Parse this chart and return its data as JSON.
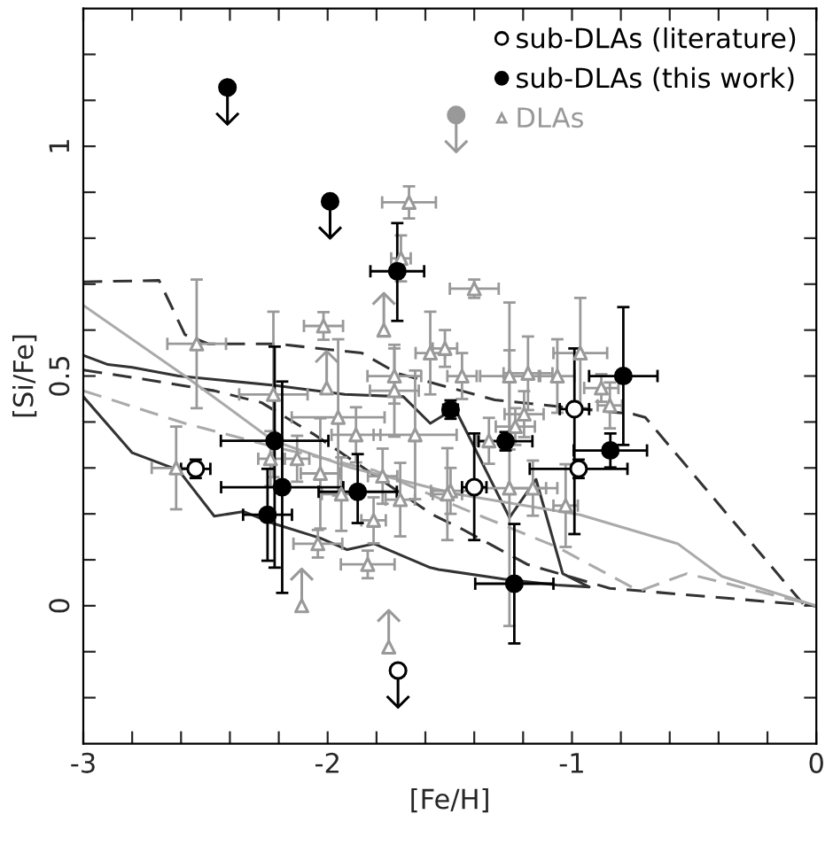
{
  "chart_data": {
    "type": "scatter",
    "xlabel": "[Fe/H]",
    "ylabel": "[Si/Fe]",
    "xlim": [
      -3,
      0
    ],
    "ylim": [
      -0.3,
      1.3
    ],
    "xticks": [
      -3,
      {
        "value": -2.8,
        "label": null
      },
      {
        "value": -2.6,
        "label": null
      },
      {
        "value": -2.4,
        "label": null
      },
      {
        "value": -2.2,
        "label": null
      },
      -2,
      {
        "value": -1.8,
        "label": null
      },
      {
        "value": -1.6,
        "label": null
      },
      {
        "value": -1.4,
        "label": null
      },
      {
        "value": -1.2,
        "label": null
      },
      -1,
      {
        "value": -0.8,
        "label": null
      },
      {
        "value": -0.6,
        "label": null
      },
      {
        "value": -0.4,
        "label": null
      },
      {
        "value": -0.2,
        "label": null
      },
      0
    ],
    "yticks": [
      {
        "value": -0.2,
        "label": null
      },
      {
        "value": -0.1,
        "label": null
      },
      0,
      {
        "value": 0.1,
        "label": null
      },
      {
        "value": 0.2,
        "label": null
      },
      {
        "value": 0.3,
        "label": null
      },
      {
        "value": 0.4,
        "label": null
      },
      0.5,
      {
        "value": 0.6,
        "label": null
      },
      {
        "value": 0.7,
        "label": null
      },
      {
        "value": 0.8,
        "label": null
      },
      {
        "value": 0.9,
        "label": null
      },
      1,
      {
        "value": 1.1,
        "label": null
      },
      {
        "value": 1.2,
        "label": null
      }
    ],
    "grid": false,
    "legend": "top right",
    "series": [
      {
        "type": "line",
        "color": "#333333",
        "line_style": "solid",
        "x": [
          -3.0,
          -2.899,
          -2.8,
          -2.61,
          -2.22,
          -1.93,
          -1.69,
          -1.58,
          -1.5,
          -1.473,
          -1.256,
          -1.147,
          -1.038,
          -0.93
        ],
        "values": [
          0.545,
          0.525,
          0.519,
          0.5,
          0.48,
          0.46,
          0.455,
          0.397,
          0.423,
          0.423,
          0.192,
          0.275,
          0.07,
          0.041
        ]
      },
      {
        "type": "line",
        "color": "#333333",
        "line_style": "solid",
        "x": [
          -3.0,
          -2.8,
          -2.61,
          -2.464,
          -2.343,
          -2.222,
          -2.029,
          -1.92,
          -1.81,
          -1.58,
          -1.546,
          -1.28,
          -1.062,
          -0.93
        ],
        "values": [
          0.455,
          0.333,
          0.295,
          0.195,
          0.205,
          0.179,
          0.147,
          0.122,
          0.135,
          0.083,
          0.079,
          0.058,
          0.045,
          0.041
        ]
      },
      {
        "type": "line",
        "color": "#333333",
        "line_style": "dashed",
        "x": [
          -3.0,
          -2.69,
          -2.584,
          -2.488,
          -2.21,
          -1.86,
          -1.715,
          -1.316,
          -0.75,
          -0.7,
          -0.048,
          0
        ],
        "values": [
          0.705,
          0.708,
          0.59,
          0.57,
          0.57,
          0.55,
          0.506,
          0.448,
          0.417,
          0.41,
          0.0,
          0.0
        ]
      },
      {
        "type": "line",
        "color": "#333333",
        "line_style": "dashed",
        "x": [
          -3.0,
          -2.75,
          -2.464,
          -2.27,
          -2.053,
          -1.57,
          -1.45,
          -1.183,
          -0.845,
          0
        ],
        "values": [
          0.513,
          0.493,
          0.468,
          0.442,
          0.372,
          0.198,
          0.167,
          0.09,
          0.038,
          0.0
        ]
      },
      {
        "type": "line",
        "color": "#aaaaaa",
        "line_style": "solid",
        "x": [
          -3.0,
          -2.584,
          -2.222,
          -1.908,
          -1.473,
          -0.966,
          -0.567,
          -0.386,
          0
        ],
        "values": [
          0.654,
          0.5,
          0.359,
          0.301,
          0.243,
          0.198,
          0.135,
          0.064,
          0.0
        ]
      },
      {
        "type": "line",
        "color": "#aaaaaa",
        "line_style": "dashed",
        "x": [
          -3.0,
          -2.584,
          -2.22,
          -1.81,
          -1.45,
          -1.062,
          -0.725,
          -0.53,
          0
        ],
        "values": [
          0.468,
          0.397,
          0.346,
          0.295,
          0.212,
          0.128,
          0.032,
          0.07,
          0.0
        ]
      },
      {
        "name": "DLAs",
        "color": "#999999",
        "marker": "triangle",
        "x": [
          -1.667,
          -1.4,
          -2.017,
          -2.536,
          -1.58,
          -1.52,
          -1.45,
          -1.256,
          -1.18,
          -1.06,
          -0.966,
          -2.222,
          -1.727,
          -1.727,
          -1.957,
          -1.884,
          -1.642,
          -2.62,
          -2.234,
          -2.125,
          -2.03,
          -1.944,
          -1.812,
          -1.703,
          -1.775,
          -2.04,
          -1.836,
          -1.497,
          -0.88,
          -0.845,
          -1.196,
          -1.232,
          -1.34,
          -1.51,
          -1.16,
          -1.026,
          -1.256,
          -1.7
        ],
        "values": [
          0.878,
          0.69,
          0.609,
          0.57,
          0.55,
          0.56,
          0.5,
          0.5,
          0.506,
          0.5,
          0.55,
          0.46,
          0.5,
          0.468,
          0.41,
          0.372,
          0.372,
          0.3,
          0.32,
          0.32,
          0.288,
          0.243,
          0.186,
          0.231,
          0.282,
          0.135,
          0.09,
          0.25,
          0.474,
          0.436,
          0.417,
          0.39,
          0.359,
          0.243,
          0.256,
          0.218,
          0.256,
          0.756
        ],
        "colors": [
          "#ffffff",
          "#ffffff",
          "#ffffff",
          "#ffffff",
          "#ffffff",
          "#ffffff",
          "#ffffff",
          "#ffffff",
          "#ffffff",
          "#ffffff",
          "#ffffff",
          "#ffffff",
          "#ffffff",
          "#ffffff",
          "#ffffff",
          "#ffffff",
          "#ffffff",
          "#ffffff",
          "#ffffff",
          "#ffffff",
          "#ffffff",
          "#ffffff",
          "#ffffff",
          "#ffffff",
          "#ffffff",
          "#ffffff",
          "#ffffff",
          "#ffffff",
          "#ffffff",
          "#ffffff",
          "#ffffff",
          "#ffffff",
          "#ffffff",
          "#ffffff",
          "#ffffff",
          "#ffffff",
          "#ffffff",
          "#ffffff"
        ],
        "xerrors": [
          0.11,
          0.1,
          0.08,
          0.12,
          0.06,
          0.05,
          0.06,
          0.12,
          0.1,
          0.07,
          0.11,
          0.14,
          0.11,
          0.1,
          0.19,
          0.1,
          0.17,
          0.1,
          0.05,
          0.05,
          0.08,
          0.08,
          0.05,
          0.06,
          0.06,
          0.1,
          0.11,
          0.08,
          0.07,
          0.05,
          0.08,
          0.08,
          0.05,
          0.06,
          0.1,
          0.05,
          0.15,
          0.04
        ],
        "errors": [
          0.035,
          0.02,
          0.03,
          0.14,
          0.09,
          0.04,
          0.05,
          0.16,
          0.08,
          0.08,
          0.12,
          0.18,
          0.06,
          0.1,
          0.17,
          0.06,
          0.14,
          0.09,
          0.06,
          0.05,
          0.12,
          0.08,
          0.05,
          0.08,
          0.06,
          0.03,
          0.03,
          0.05,
          0.03,
          0.05,
          0.05,
          0.04,
          0.05,
          0.1,
          0.06,
          0.09,
          0.3,
          0.05
        ]
      },
      {
        "color": "#999999",
        "marker": "triangle",
        "x": [
          -1.77,
          -2.004,
          -2.106,
          -1.75
        ],
        "values": [
          0.6,
          0.474,
          0.0,
          -0.09
        ],
        "colors": [
          "#ffffff",
          "#ffffff",
          "#ffffff",
          "#ffffff"
        ],
        "errors": [
          [
            0.6,
            0.68
          ],
          [
            0.474,
            0.554
          ],
          [
            0.0,
            0.08
          ],
          [
            -0.09,
            -0.01
          ]
        ]
      },
      {
        "name": "sub-DLAs (literature)",
        "color": "#000000",
        "marker": "circle",
        "x": [
          -2.54,
          -1.4,
          -0.99,
          -0.973
        ],
        "values": [
          0.298,
          0.258,
          0.428,
          0.298
        ],
        "colors": [
          "#ffffff",
          "#ffffff",
          "#ffffff",
          "#ffffff"
        ],
        "xerrors": [
          0.06,
          0.05,
          0.06,
          0.2
        ],
        "errors": [
          0.02,
          [
            0.143,
            0.375
          ],
          [
            0.156,
            0.56
          ],
          0.02
        ]
      },
      {
        "color": "#000000",
        "marker": "circle",
        "x": [
          -1.712
        ],
        "values": [
          -0.141
        ],
        "colors": [
          "#ffffff"
        ],
        "errors": [
          [
            -0.221,
            -0.141
          ]
        ]
      },
      {
        "name": "sub-DLAs (this work)",
        "color": "#000000",
        "marker": "circle",
        "x": [
          -1.715,
          -0.79,
          -0.843,
          -1.497,
          -1.272,
          -1.236,
          -2.186,
          -2.217,
          -2.246,
          -1.877
        ],
        "values": [
          0.728,
          0.5,
          0.338,
          0.427,
          0.358,
          0.048,
          0.258,
          0.359,
          0.198,
          0.248
        ],
        "xerrors": [
          0.11,
          0.14,
          0.15,
          0.03,
          0.11,
          0.16,
          0.25,
          0.22,
          0.1,
          0.16
        ],
        "errors": [
          [
            0.62,
            0.833
          ],
          [
            0.35,
            0.65
          ],
          0.037,
          0.02,
          0.02,
          0.13,
          0.23,
          [
            0.083,
            0.564
          ],
          0.1,
          [
            0.18,
            0.33
          ]
        ]
      },
      {
        "color": "#000000",
        "marker": "circle",
        "x": [
          -2.41,
          -1.99
        ],
        "values": [
          1.128,
          0.88
        ],
        "errors": [
          [
            1.048,
            1.128
          ],
          [
            0.8,
            0.88
          ]
        ]
      },
      {
        "color": "#999999",
        "marker": "circle",
        "x": [
          -1.474
        ],
        "values": [
          1.068
        ],
        "errors": [
          [
            0.988,
            1.068
          ]
        ]
      }
    ]
  }
}
